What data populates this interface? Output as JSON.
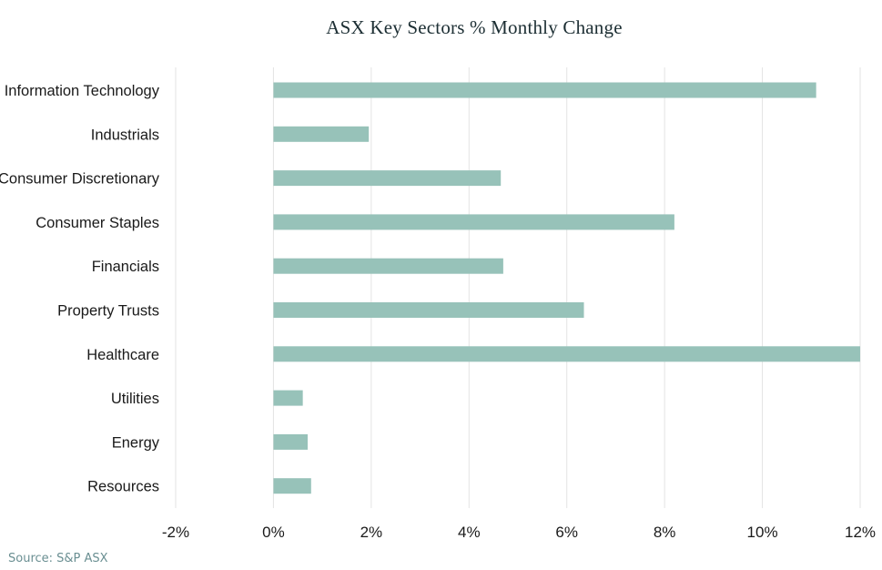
{
  "chart_data": {
    "type": "bar",
    "orientation": "horizontal",
    "title": "ASX Key Sectors % Monthly Change",
    "categories": [
      "Information Technology",
      "Industrials",
      "Consumer Discretionary",
      "Consumer Staples",
      "Financials",
      "Property Trusts",
      "Healthcare",
      "Utilities",
      "Energy",
      "Resources"
    ],
    "values": [
      11.1,
      1.95,
      4.65,
      8.2,
      4.7,
      6.35,
      12.0,
      0.6,
      0.7,
      0.77
    ],
    "xlabel": "",
    "ylabel": "",
    "xlim": [
      -2,
      12
    ],
    "xticks": [
      -2,
      0,
      2,
      4,
      6,
      8,
      10,
      12
    ],
    "xtick_labels": [
      "-2%",
      "0%",
      "2%",
      "4%",
      "6%",
      "8%",
      "10%",
      "12%"
    ],
    "grid": "vertical",
    "legend": "none",
    "bar_color": "#97c2b9",
    "grid_color": "#e3e3e3",
    "text_color": "#1a1a1a"
  },
  "footer": {
    "source": "Source: S&P ASX",
    "source_color": "#6a8f92"
  }
}
